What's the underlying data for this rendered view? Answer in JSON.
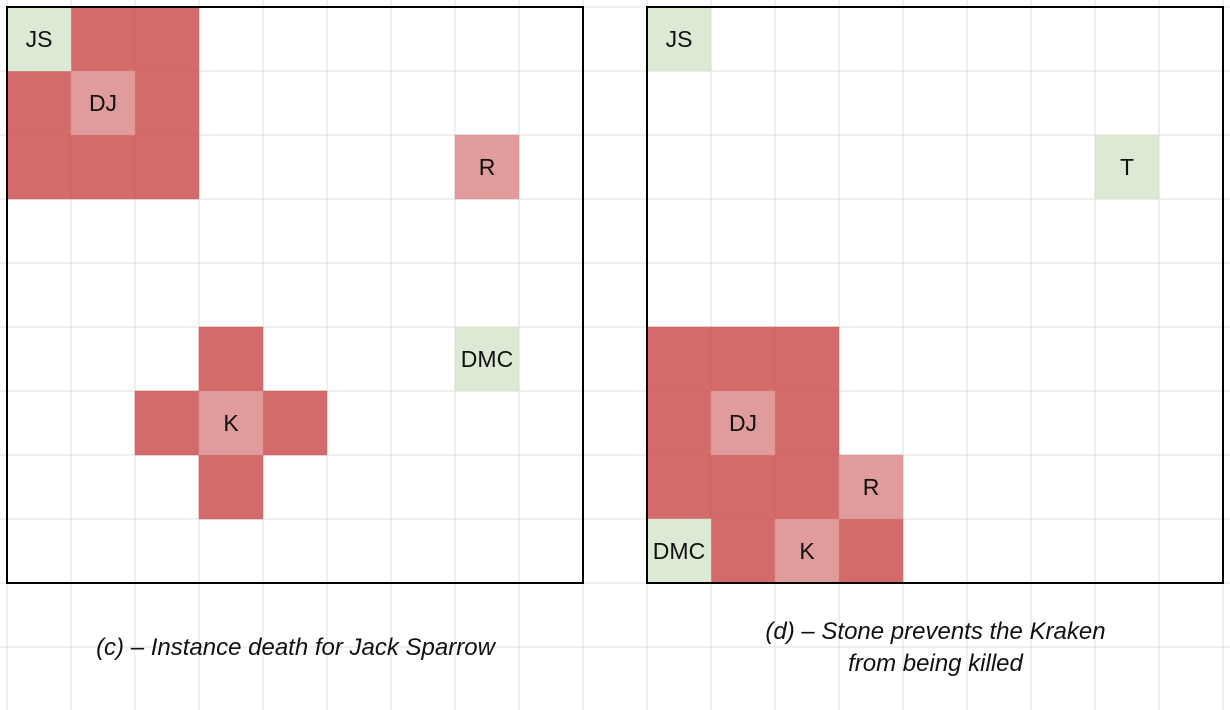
{
  "colors": {
    "gridline": "#e0e0e0",
    "border": "#000000",
    "danger": "#d46b6b",
    "entity_danger": "#e09c9c",
    "entity_safe": "#dbe9d5",
    "entity_text": "#111111"
  },
  "panels": [
    {
      "id": "c",
      "danger_cells": [
        [
          0,
          1
        ],
        [
          0,
          2
        ],
        [
          1,
          0
        ],
        [
          1,
          2
        ],
        [
          2,
          0
        ],
        [
          2,
          1
        ],
        [
          2,
          2
        ],
        [
          5,
          3
        ],
        [
          6,
          2
        ],
        [
          6,
          4
        ],
        [
          7,
          3
        ]
      ],
      "entities": [
        {
          "label": "JS",
          "row": 0,
          "col": 0,
          "kind": "safe"
        },
        {
          "label": "DJ",
          "row": 1,
          "col": 1,
          "kind": "danger"
        },
        {
          "label": "R",
          "row": 2,
          "col": 7,
          "kind": "danger"
        },
        {
          "label": "DMC",
          "row": 5,
          "col": 7,
          "kind": "safe"
        },
        {
          "label": "K",
          "row": 6,
          "col": 3,
          "kind": "danger"
        }
      ],
      "caption_lines": [
        "(c) – Instance death for Jack Sparrow"
      ]
    },
    {
      "id": "d",
      "danger_cells": [
        [
          5,
          0
        ],
        [
          5,
          1
        ],
        [
          5,
          2
        ],
        [
          6,
          0
        ],
        [
          6,
          2
        ],
        [
          7,
          0
        ],
        [
          7,
          1
        ],
        [
          7,
          2
        ],
        [
          8,
          1
        ],
        [
          8,
          3
        ]
      ],
      "entities": [
        {
          "label": "JS",
          "row": 0,
          "col": 0,
          "kind": "safe"
        },
        {
          "label": "T",
          "row": 2,
          "col": 7,
          "kind": "safe"
        },
        {
          "label": "DJ",
          "row": 6,
          "col": 1,
          "kind": "danger"
        },
        {
          "label": "R",
          "row": 7,
          "col": 3,
          "kind": "danger"
        },
        {
          "label": "DMC",
          "row": 8,
          "col": 0,
          "kind": "safe"
        },
        {
          "label": "K",
          "row": 8,
          "col": 2,
          "kind": "danger"
        }
      ],
      "caption_lines": [
        "(d) – Stone prevents the Kraken",
        "from being killed"
      ]
    }
  ]
}
